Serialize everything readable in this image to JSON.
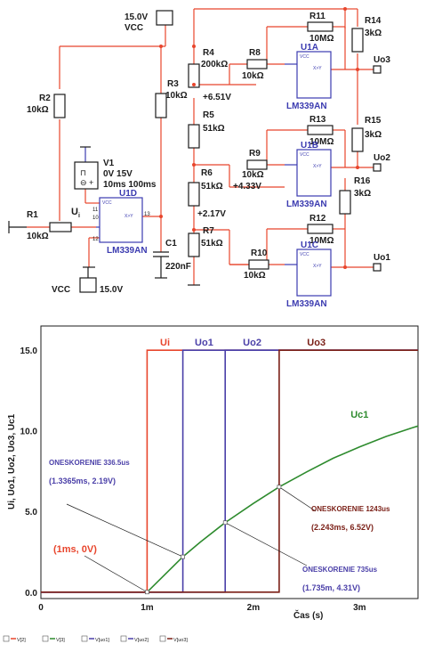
{
  "circuit": {
    "vcc_top": {
      "voltage": "15.0V",
      "label": "VCC"
    },
    "vcc_bottom": {
      "voltage": "15.0V",
      "label": "VCC"
    },
    "source": {
      "name": "V1",
      "params": "0V 15V",
      "timing": "10ms 100ms",
      "input_label": "U",
      "input_sub": "i"
    },
    "resistors": [
      {
        "name": "R1",
        "value": "10kΩ"
      },
      {
        "name": "R2",
        "value": "10kΩ"
      },
      {
        "name": "R3",
        "value": "10kΩ"
      },
      {
        "name": "R4",
        "value": "200kΩ"
      },
      {
        "name": "R5",
        "value": "51kΩ"
      },
      {
        "name": "R6",
        "value": "51kΩ"
      },
      {
        "name": "R7",
        "value": "51kΩ"
      },
      {
        "name": "R8",
        "value": "10kΩ"
      },
      {
        "name": "R9",
        "value": "10kΩ"
      },
      {
        "name": "R10",
        "value": "10kΩ"
      },
      {
        "name": "R11",
        "value": "10MΩ"
      },
      {
        "name": "R12",
        "value": "10MΩ"
      },
      {
        "name": "R13",
        "value": "10MΩ"
      },
      {
        "name": "R14",
        "value": "3kΩ"
      },
      {
        "name": "R15",
        "value": "3kΩ"
      },
      {
        "name": "R16",
        "value": "3kΩ"
      }
    ],
    "capacitor": {
      "name": "C1",
      "value": "220nF"
    },
    "comparators": [
      {
        "name": "U1A",
        "part": "LM339AN"
      },
      {
        "name": "U1B",
        "part": "LM339AN"
      },
      {
        "name": "U1C",
        "part": "LM339AN"
      },
      {
        "name": "U1D",
        "part": "LM339AN"
      }
    ],
    "node_voltages": [
      "+6.51V",
      "+4.33V",
      "+2.17V"
    ],
    "outputs": [
      "Uo3",
      "Uo2",
      "Uo1"
    ],
    "pins": {
      "p11": "11",
      "p10": "10",
      "p13": "13",
      "p12": "12"
    }
  },
  "chart_data": {
    "type": "line",
    "xlabel": "Čas (s)",
    "ylabel": "Ui, Uo1, Uo2, Uo3, Uc1",
    "xlim": [
      0,
      3.55
    ],
    "ylim": [
      -0.4,
      16.5
    ],
    "x_ticks": [
      {
        "v": 0,
        "label": "0"
      },
      {
        "v": 1,
        "label": "1m"
      },
      {
        "v": 2,
        "label": "2m"
      },
      {
        "v": 3,
        "label": "3m"
      }
    ],
    "y_ticks": [
      {
        "v": 0,
        "label": "0.0"
      },
      {
        "v": 5,
        "label": "5.0"
      },
      {
        "v": 10,
        "label": "10.0"
      },
      {
        "v": 15,
        "label": "15.0"
      }
    ],
    "grid": true,
    "series": [
      {
        "name": "Ui",
        "color": "#e8452c",
        "step_at": 1.0,
        "low": 0,
        "high": 15
      },
      {
        "name": "Uo1",
        "color": "#4a3fa8",
        "step_at": 1.3365,
        "low": 0,
        "high": 15
      },
      {
        "name": "Uo2",
        "color": "#4a3fa8",
        "step_at": 1.735,
        "low": 0,
        "high": 15
      },
      {
        "name": "Uo3",
        "color": "#7a1f16",
        "step_at": 2.243,
        "low": 0,
        "high": 15
      },
      {
        "name": "Uc1",
        "color": "#2e8b2e",
        "x": [
          1.0,
          1.2,
          1.3365,
          1.5,
          1.735,
          2.0,
          2.243,
          2.5,
          2.75,
          3.0,
          3.25,
          3.5,
          3.55
        ],
        "y": [
          0.0,
          1.3,
          2.19,
          3.1,
          4.31,
          5.5,
          6.52,
          7.45,
          8.3,
          9.0,
          9.65,
          10.2,
          10.3
        ]
      }
    ],
    "annotations": [
      {
        "label": "ONESKORENIE 336.5us",
        "coords": "(1.3365ms, 2.19V)",
        "x": 1.3365,
        "y": 2.19,
        "color": "#4a3fa8"
      },
      {
        "label": "ONESKORENIE 735us",
        "coords": "(1.735m, 4.31V)",
        "x": 1.735,
        "y": 4.31,
        "color": "#4a3fa8"
      },
      {
        "label": "ONESKORENIE 1243us",
        "coords": "(2.243ms, 6.52V)",
        "x": 2.243,
        "y": 6.52,
        "color": "#7a1f16"
      },
      {
        "label": "",
        "coords": "(1ms, 0V)",
        "x": 1.0,
        "y": 0.0,
        "color": "#e8452c"
      }
    ],
    "legend": [
      "V[2]",
      "V[3]",
      "V[uo1]",
      "V[uo2]",
      "V[uo3]"
    ]
  }
}
